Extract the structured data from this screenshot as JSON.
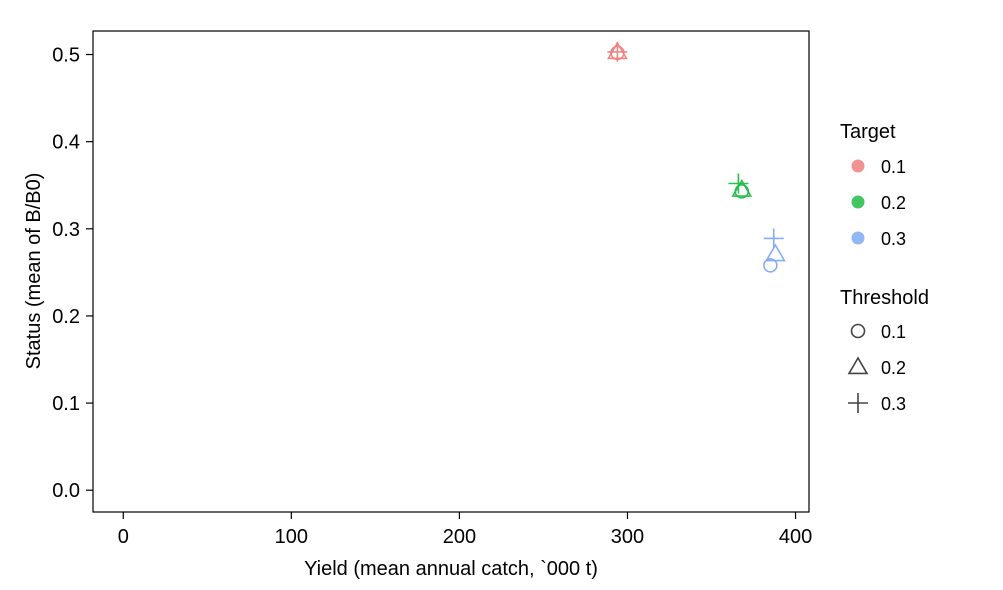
{
  "chart_data": {
    "type": "scatter",
    "xlabel": "Yield (mean annual catch, `000 t)",
    "ylabel": "Status (mean of B/B0)",
    "xlim": [
      -18,
      408
    ],
    "ylim": [
      -0.025,
      0.527
    ],
    "x_ticks": [
      0,
      100,
      200,
      300,
      400
    ],
    "y_ticks": [
      0.0,
      0.1,
      0.2,
      0.3,
      0.4,
      0.5
    ],
    "x_tick_labels": [
      "0",
      "100",
      "200",
      "300",
      "400"
    ],
    "y_tick_labels": [
      "0.0",
      "0.1",
      "0.2",
      "0.3",
      "0.4",
      "0.5"
    ],
    "grid": false,
    "legend_position": "right",
    "colors": {
      "0.1": "#F08080",
      "0.2": "#22BB44",
      "0.3": "#7FAAF5"
    },
    "shapes": {
      "0.1": "circle",
      "0.2": "triangle",
      "0.3": "plus"
    },
    "legends": {
      "color": {
        "title": "Target",
        "items": [
          "0.1",
          "0.2",
          "0.3"
        ]
      },
      "shape": {
        "title": "Threshold",
        "items": [
          "0.1",
          "0.2",
          "0.3"
        ]
      }
    },
    "points": [
      {
        "target": "0.1",
        "threshold": "0.1",
        "x": 294,
        "y": 0.502
      },
      {
        "target": "0.1",
        "threshold": "0.2",
        "x": 294,
        "y": 0.503
      },
      {
        "target": "0.1",
        "threshold": "0.3",
        "x": 294,
        "y": 0.503
      },
      {
        "target": "0.2",
        "threshold": "0.1",
        "x": 368,
        "y": 0.343
      },
      {
        "target": "0.2",
        "threshold": "0.2",
        "x": 368,
        "y": 0.345
      },
      {
        "target": "0.2",
        "threshold": "0.3",
        "x": 366,
        "y": 0.352
      },
      {
        "target": "0.3",
        "threshold": "0.1",
        "x": 385,
        "y": 0.258
      },
      {
        "target": "0.3",
        "threshold": "0.2",
        "x": 388,
        "y": 0.271
      },
      {
        "target": "0.3",
        "threshold": "0.3",
        "x": 387,
        "y": 0.289
      }
    ]
  }
}
